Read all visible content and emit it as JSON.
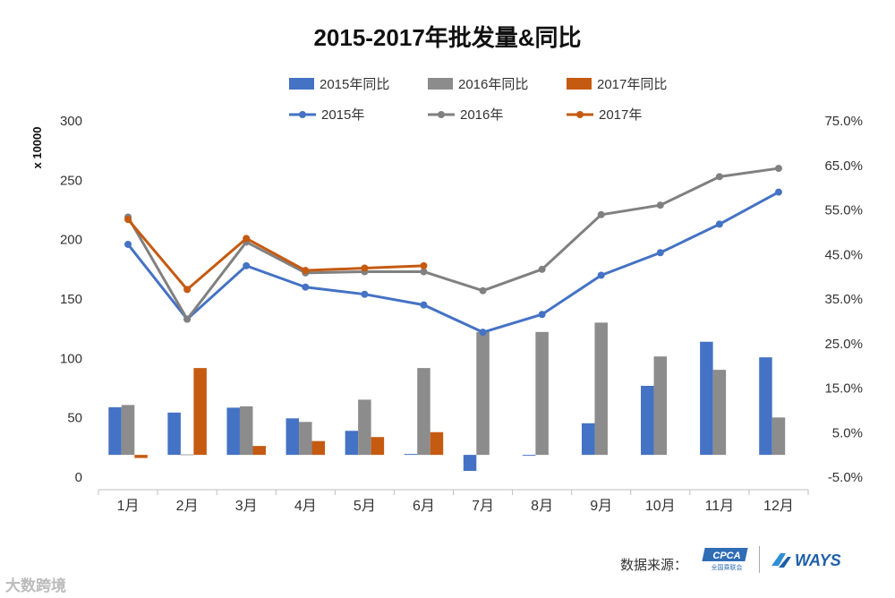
{
  "chart_data": {
    "type": "bar",
    "title": "2015-2017年批发量&同比",
    "ylabel": "x 10000",
    "categories": [
      "1月",
      "2月",
      "3月",
      "4月",
      "5月",
      "6月",
      "7月",
      "8月",
      "9月",
      "10月",
      "11月",
      "12月"
    ],
    "y_left_range": [
      0,
      300
    ],
    "y_left_ticks": [
      "0",
      "50",
      "100",
      "150",
      "200",
      "250",
      "300"
    ],
    "y_right_range": [
      -0.05,
      0.75
    ],
    "y_right_ticks": [
      "-5.0%",
      "5.0%",
      "15.0%",
      "25.0%",
      "35.0%",
      "45.0%",
      "55.0%",
      "65.0%",
      "75.0%"
    ],
    "bar_series": [
      {
        "name": "2015年同比",
        "color": "#4472C4",
        "values": [
          0.107,
          0.095,
          0.106,
          0.082,
          0.054,
          0.002,
          -0.036,
          -0.002,
          0.071,
          0.155,
          0.254,
          0.219
        ]
      },
      {
        "name": "2016年同比",
        "color": "#8C8C8C",
        "values": [
          0.112,
          0.001,
          0.109,
          0.074,
          0.124,
          0.195,
          0.276,
          0.276,
          0.297,
          0.221,
          0.191,
          0.084
        ]
      },
      {
        "name": "2017年同比",
        "color": "#C55A11",
        "values": [
          -0.007,
          0.195,
          0.02,
          0.031,
          0.04,
          0.051,
          null,
          null,
          null,
          null,
          null,
          null
        ]
      }
    ],
    "line_series": [
      {
        "name": "2015年",
        "color": "#4472C4",
        "values": [
          196,
          133,
          178,
          160,
          154,
          145,
          122,
          137,
          170,
          189,
          213,
          240
        ]
      },
      {
        "name": "2016年",
        "color": "#808080",
        "values": [
          219,
          133,
          198,
          172,
          173,
          173,
          157,
          175,
          221,
          229,
          253,
          260
        ]
      },
      {
        "name": "2017年",
        "color": "#C55A11",
        "values": [
          217,
          158,
          201,
          174,
          176,
          178,
          null,
          null,
          null,
          null,
          null,
          null
        ]
      }
    ],
    "grid": false,
    "legend_position": "top"
  },
  "footer": {
    "source_label": "数据来源：",
    "cpca_logo": "CPCA",
    "cpca_subtitle": "全国乘联会",
    "ways_logo": "WAYS",
    "watermark": "大数跨境"
  }
}
